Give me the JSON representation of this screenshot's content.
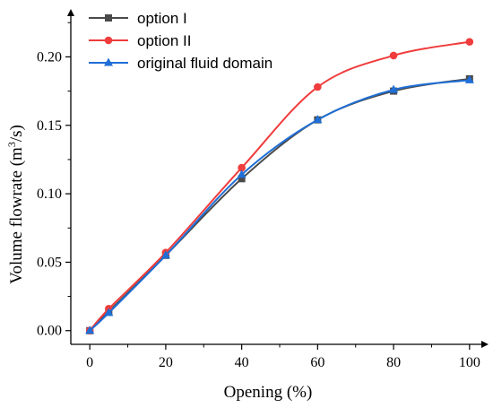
{
  "chart_data": {
    "type": "line",
    "title": "",
    "xlabel": "Opening (%)",
    "ylabel_main": "Volume flowrate (m",
    "ylabel_sup": "3",
    "ylabel_tail": "/s)",
    "xlim": [
      -5,
      105
    ],
    "ylim": [
      -0.01,
      0.235
    ],
    "xticks": [
      0,
      20,
      40,
      60,
      80,
      100
    ],
    "yticks": [
      0.0,
      0.05,
      0.1,
      0.15,
      0.2
    ],
    "xtick_labels": [
      "0",
      "20",
      "40",
      "60",
      "80",
      "100"
    ],
    "ytick_labels": [
      "0.00",
      "0.05",
      "0.10",
      "0.15",
      "0.20"
    ],
    "grid": false,
    "legend_position": "top-left",
    "x": [
      0,
      5,
      20,
      40,
      60,
      80,
      100
    ],
    "series": [
      {
        "name": "option I",
        "color": "#4a4a4a",
        "marker": "square",
        "values": [
          0.0,
          0.014,
          0.055,
          0.111,
          0.154,
          0.175,
          0.184
        ]
      },
      {
        "name": "option II",
        "color": "#f03c3c",
        "marker": "circle",
        "values": [
          0.0,
          0.016,
          0.057,
          0.119,
          0.178,
          0.201,
          0.211
        ]
      },
      {
        "name": "original fluid domain",
        "color": "#1f6fd6",
        "marker": "triangle",
        "values": [
          0.0,
          0.013,
          0.055,
          0.114,
          0.154,
          0.176,
          0.183
        ]
      }
    ]
  }
}
